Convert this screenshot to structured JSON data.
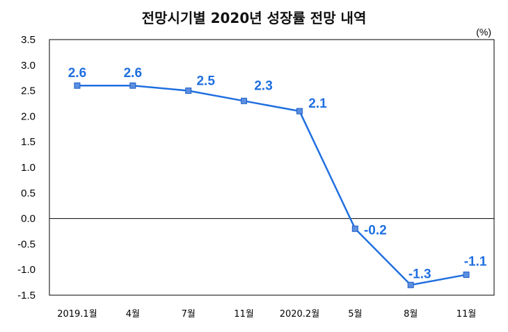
{
  "chart_data": {
    "type": "line",
    "title": "전망시기별 2020년 성장률 전망 내역",
    "unit_label": "(%)",
    "categories": [
      "2019.1월",
      "4월",
      "7월",
      "11월",
      "2020.2월",
      "5월",
      "8월",
      "11월"
    ],
    "series": [
      {
        "values": [
          2.6,
          2.6,
          2.5,
          2.3,
          2.1,
          -0.2,
          -1.3,
          -1.1
        ]
      }
    ],
    "data_labels": [
      "2.6",
      "2.6",
      "2.5",
      "2.3",
      "2.1",
      "-0.2",
      "-1.3",
      "-1.1"
    ],
    "y_ticks": [
      "3.5",
      "3.0",
      "2.5",
      "2.0",
      "1.5",
      "1.0",
      "0.5",
      "0.0",
      "-0.5",
      "-1.0",
      "-1.5"
    ],
    "ylim": [
      -1.5,
      3.5
    ],
    "grid": false,
    "zero_line": true,
    "colors": {
      "line": "#1f6fe0",
      "marker_fill": "#5b8fe0",
      "marker_stroke": "#1f5fc8",
      "label": "#1f6fe0"
    }
  }
}
